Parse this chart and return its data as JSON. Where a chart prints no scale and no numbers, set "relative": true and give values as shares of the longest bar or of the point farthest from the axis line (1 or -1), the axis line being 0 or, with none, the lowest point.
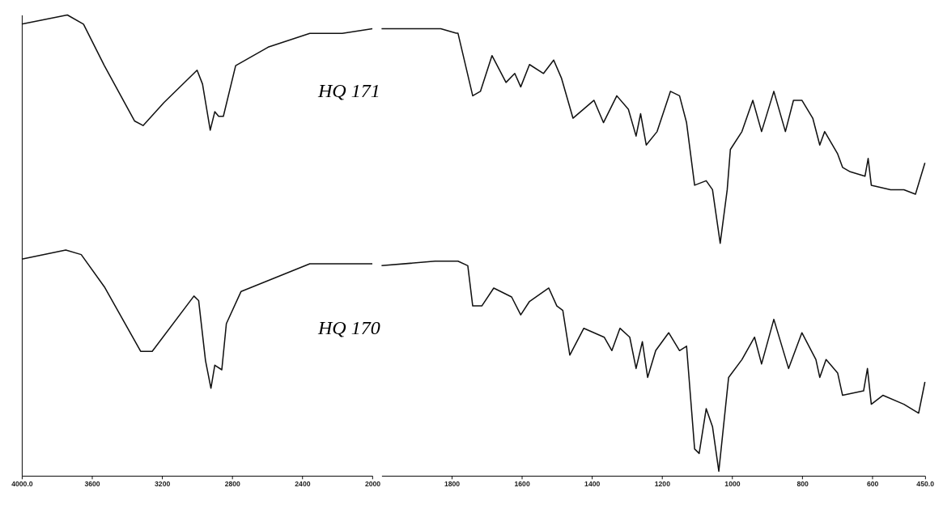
{
  "chart_data": [
    {
      "type": "line",
      "relative": true,
      "tick_labels": "x",
      "grid": false,
      "line_style": "solid",
      "marker": "none",
      "xlim": [
        4000,
        2000
      ],
      "xticks": [
        {
          "value": 4000,
          "label": "4000.0"
        },
        3600,
        3200,
        2800,
        2400,
        2000
      ],
      "series": [
        {
          "color": "#111111",
          "x": [
            4000,
            3740,
            3648,
            3529,
            3357,
            3308,
            3189,
            3000,
            2969,
            2925,
            2899,
            2877,
            2850,
            2780,
            2595,
            2357,
            2172,
            2000
          ],
          "values": [
            0.98,
            1.0,
            0.98,
            0.89,
            0.77,
            0.76,
            0.81,
            0.88,
            0.85,
            0.75,
            0.79,
            0.78,
            0.78,
            0.89,
            0.93,
            0.96,
            0.96,
            0.97
          ]
        },
        {
          "color": "#111111",
          "x": [
            4000,
            3749,
            3661,
            3529,
            3322,
            3256,
            3018,
            2991,
            2952,
            2921,
            2899,
            2859,
            2833,
            2749,
            2357,
            2000
          ],
          "values": [
            0.47,
            0.49,
            0.48,
            0.41,
            0.27,
            0.27,
            0.39,
            0.38,
            0.25,
            0.19,
            0.24,
            0.23,
            0.33,
            0.4,
            0.46,
            0.46
          ]
        }
      ],
      "annotations": [
        "HQ 171",
        "HQ 170"
      ]
    },
    {
      "type": "line",
      "relative": true,
      "tick_labels": "x",
      "grid": false,
      "line_style": "solid",
      "marker": "none",
      "xlim": [
        2000,
        450
      ],
      "xticks": [
        1800,
        1600,
        1400,
        1200,
        1000,
        800,
        600,
        {
          "value": 450,
          "label": "450.0"
        }
      ],
      "series": [
        {
          "color": "#111111",
          "x": [
            2000,
            1831,
            1787,
            1782,
            1740,
            1718,
            1685,
            1645,
            1620,
            1603,
            1578,
            1538,
            1509,
            1487,
            1454,
            1394,
            1367,
            1329,
            1296,
            1274,
            1261,
            1245,
            1214,
            1176,
            1150,
            1130,
            1107,
            1074,
            1056,
            1034,
            1014,
            1005,
            972,
            941,
            916,
            881,
            848,
            825,
            801,
            770,
            750,
            736,
            699,
            685,
            663,
            621,
            612,
            603,
            548,
            510,
            477,
            450
          ],
          "values": [
            1.0,
            1.0,
            0.99,
            0.99,
            0.85,
            0.86,
            0.94,
            0.88,
            0.9,
            0.87,
            0.92,
            0.9,
            0.93,
            0.89,
            0.8,
            0.84,
            0.79,
            0.85,
            0.82,
            0.76,
            0.81,
            0.74,
            0.77,
            0.86,
            0.85,
            0.79,
            0.65,
            0.66,
            0.64,
            0.52,
            0.64,
            0.73,
            0.77,
            0.84,
            0.77,
            0.86,
            0.77,
            0.84,
            0.84,
            0.8,
            0.74,
            0.77,
            0.72,
            0.69,
            0.68,
            0.67,
            0.71,
            0.65,
            0.64,
            0.64,
            0.63,
            0.7
          ]
        },
        {
          "color": "#111111",
          "x": [
            2000,
            1847,
            1782,
            1754,
            1740,
            1714,
            1680,
            1629,
            1603,
            1578,
            1523,
            1500,
            1483,
            1463,
            1423,
            1365,
            1343,
            1320,
            1292,
            1274,
            1256,
            1241,
            1218,
            1181,
            1150,
            1130,
            1107,
            1094,
            1074,
            1056,
            1038,
            1010,
            972,
            936,
            916,
            881,
            839,
            801,
            761,
            750,
            732,
            699,
            685,
            625,
            614,
            603,
            570,
            510,
            468,
            450
          ],
          "values": [
            0.47,
            0.48,
            0.48,
            0.47,
            0.38,
            0.38,
            0.42,
            0.4,
            0.36,
            0.39,
            0.42,
            0.38,
            0.37,
            0.27,
            0.33,
            0.31,
            0.28,
            0.33,
            0.31,
            0.24,
            0.3,
            0.22,
            0.28,
            0.32,
            0.28,
            0.29,
            0.06,
            0.05,
            0.15,
            0.11,
            0.01,
            0.22,
            0.26,
            0.31,
            0.25,
            0.35,
            0.24,
            0.32,
            0.26,
            0.22,
            0.26,
            0.23,
            0.18,
            0.19,
            0.24,
            0.16,
            0.18,
            0.16,
            0.14,
            0.21
          ]
        }
      ]
    }
  ]
}
